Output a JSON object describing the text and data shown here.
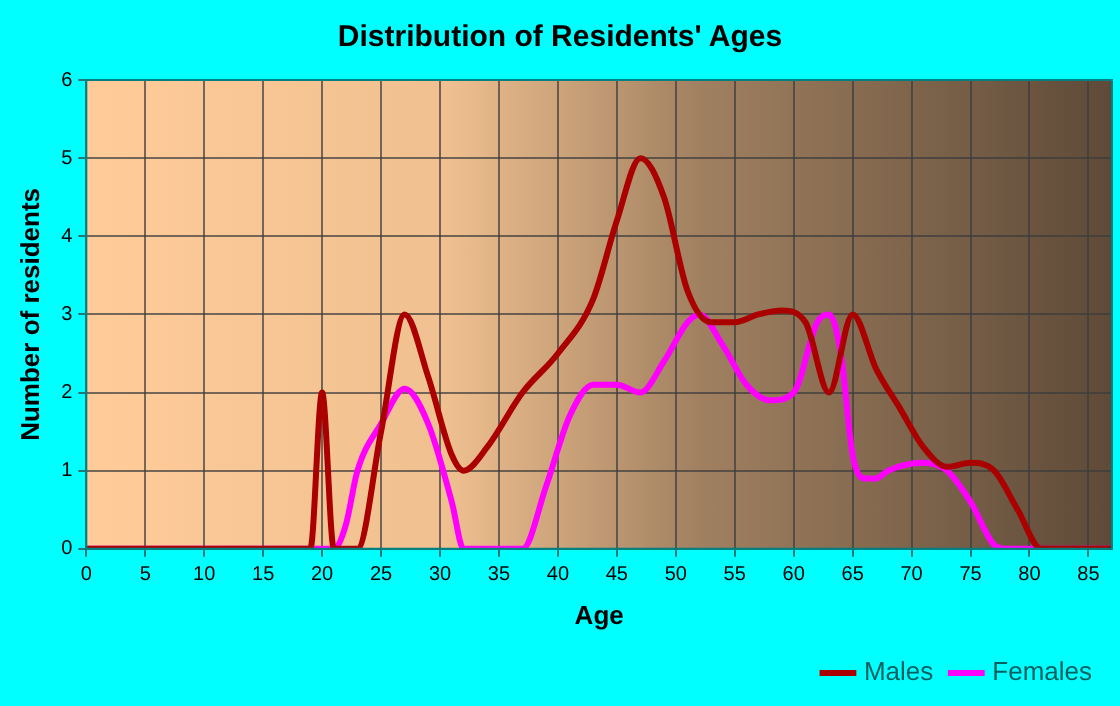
{
  "chart_data": {
    "type": "line",
    "title": "Distribution of Residents' Ages",
    "xlabel": "Age",
    "ylabel": "Number of residents",
    "series": [
      {
        "name": "Males",
        "color": "#aa0000",
        "x": [
          0,
          19,
          20,
          21,
          23,
          25,
          27,
          29,
          31,
          32,
          34,
          37,
          40,
          43,
          45,
          47,
          49,
          51,
          53,
          55,
          57,
          59,
          61,
          63,
          65,
          67,
          69,
          71,
          73,
          75,
          77,
          79,
          81,
          87
        ],
        "values": [
          0,
          0,
          2,
          0,
          0,
          1.5,
          3,
          2.2,
          1.2,
          1,
          1.3,
          2,
          2.5,
          3.2,
          4.2,
          5,
          4.5,
          3.3,
          2.9,
          2.9,
          3,
          3.05,
          2.9,
          2,
          3,
          2.3,
          1.8,
          1.3,
          1.05,
          1.1,
          1,
          0.5,
          0,
          0
        ]
      },
      {
        "name": "Females",
        "color": "#ff00ff",
        "x": [
          0,
          20,
          21,
          22,
          23,
          25,
          27,
          29,
          31,
          32,
          37,
          39,
          41,
          43,
          45,
          47,
          49,
          51,
          52,
          54,
          56,
          58,
          60,
          62,
          63,
          64,
          65,
          66,
          67,
          68,
          71,
          73,
          75,
          77,
          78,
          87
        ],
        "values": [
          0,
          0,
          0,
          0.3,
          1,
          1.6,
          2.05,
          1.6,
          0.6,
          0,
          0,
          0.8,
          1.7,
          2.1,
          2.1,
          2,
          2.4,
          2.9,
          3,
          2.6,
          2.1,
          1.9,
          2,
          2.9,
          3,
          2.5,
          1.2,
          0.9,
          0.9,
          1,
          1.1,
          1,
          0.6,
          0.05,
          0,
          0
        ]
      }
    ],
    "xlim": [
      0,
      87
    ],
    "xticks": [
      0,
      5,
      10,
      15,
      20,
      25,
      30,
      35,
      40,
      45,
      50,
      55,
      60,
      65,
      70,
      75,
      80,
      85
    ],
    "ylim": [
      0,
      6
    ],
    "yticks": [
      0,
      1,
      2,
      3,
      4,
      5,
      6
    ],
    "grid": true,
    "legend": "bottom right",
    "marker": "none",
    "line_style": "solid"
  }
}
